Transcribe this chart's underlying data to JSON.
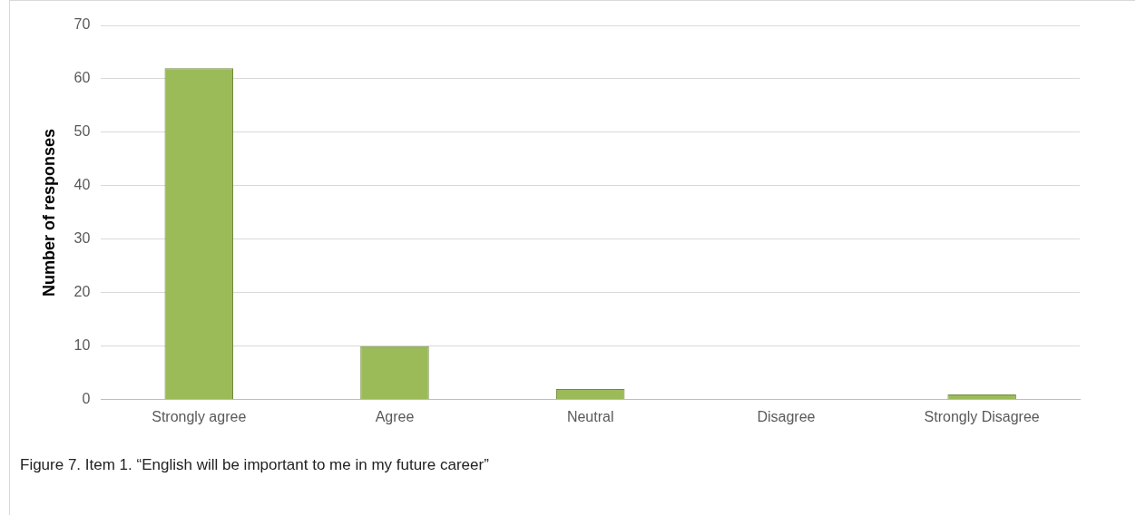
{
  "chart_data": {
    "type": "bar",
    "ylabel": "Number of responses",
    "categories": [
      "Strongly agree",
      "Agree",
      "Neutral",
      "Disagree",
      "Strongly Disagree"
    ],
    "values": [
      62,
      10,
      2,
      0,
      1
    ],
    "color": "#9bbb59",
    "ylim": [
      0,
      70
    ],
    "yticks": [
      0,
      10,
      20,
      30,
      40,
      50,
      60,
      70
    ],
    "grid": "y",
    "legend": false,
    "annotations": [
      "Figure 7. Item 1. “English will be important to me in my future career”"
    ]
  }
}
